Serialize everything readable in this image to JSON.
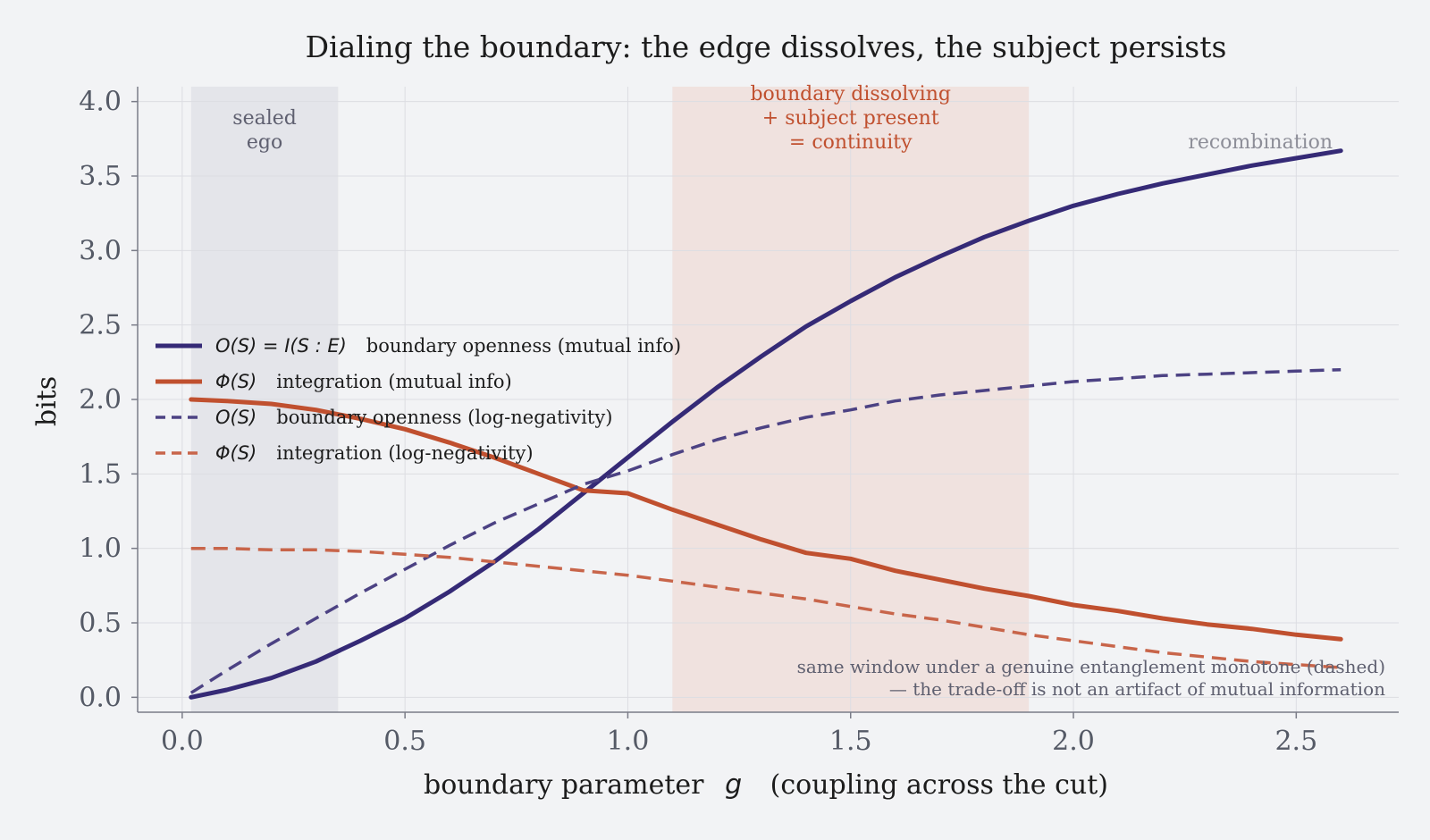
{
  "chart_data": {
    "type": "line",
    "title": "Dialing the boundary: the edge dissolves, the subject persists",
    "xlabel_text": "boundary parameter",
    "xlabel_var": "g",
    "xlabel_suffix": "(coupling across the cut)",
    "ylabel": "bits",
    "xlim": [
      -0.1,
      2.73
    ],
    "ylim": [
      -0.1,
      4.1
    ],
    "xticks": [
      0.0,
      0.5,
      1.0,
      1.5,
      2.0,
      2.5
    ],
    "xtick_labels": [
      "0.0",
      "0.5",
      "1.0",
      "1.5",
      "2.0",
      "2.5"
    ],
    "yticks": [
      0.0,
      0.5,
      1.0,
      1.5,
      2.0,
      2.5,
      3.0,
      3.5,
      4.0
    ],
    "ytick_labels": [
      "0.0",
      "0.5",
      "1.0",
      "1.5",
      "2.0",
      "2.5",
      "3.0",
      "3.5",
      "4.0"
    ],
    "grid": true,
    "regions": [
      {
        "x0": 0.02,
        "x1": 0.35,
        "color": "#e4e5ea",
        "label_lines": [
          "sealed",
          "ego"
        ],
        "label_color": "#5f6070"
      },
      {
        "x0": 1.1,
        "x1": 1.9,
        "color": "#f0e2df",
        "label_lines": [
          "boundary dissolving",
          "+ subject present",
          "= continuity"
        ],
        "label_color": "#c0502f"
      }
    ],
    "region_annotation": {
      "text": "recombination",
      "color": "#8d8e98"
    },
    "note_lines": [
      "same window under a genuine entanglement monotone (dashed)",
      "— the trade-off is not an artifact of mutual information"
    ],
    "x": [
      0.02,
      0.1,
      0.2,
      0.3,
      0.4,
      0.5,
      0.6,
      0.7,
      0.8,
      0.9,
      1.0,
      1.1,
      1.2,
      1.3,
      1.4,
      1.5,
      1.6,
      1.7,
      1.8,
      1.9,
      2.0,
      2.1,
      2.2,
      2.3,
      2.4,
      2.5,
      2.6
    ],
    "series": [
      {
        "math": "O(S) = I(S : E)",
        "desc": "boundary openness (mutual info)",
        "color": "#352a76",
        "dash": "solid",
        "width": 5,
        "values": [
          0.0,
          0.05,
          0.13,
          0.24,
          0.38,
          0.53,
          0.71,
          0.91,
          1.13,
          1.37,
          1.61,
          1.85,
          2.08,
          2.29,
          2.49,
          2.66,
          2.82,
          2.96,
          3.09,
          3.2,
          3.3,
          3.38,
          3.45,
          3.51,
          3.57,
          3.62,
          3.67
        ]
      },
      {
        "math": "Φ(S)",
        "desc": "integration (mutual info)",
        "color": "#c0502f",
        "dash": "solid",
        "width": 5,
        "values": [
          2.0,
          1.99,
          1.97,
          1.93,
          1.87,
          1.8,
          1.71,
          1.61,
          1.5,
          1.39,
          1.37,
          1.26,
          1.16,
          1.06,
          0.97,
          0.93,
          0.85,
          0.79,
          0.73,
          0.68,
          0.62,
          0.58,
          0.53,
          0.49,
          0.46,
          0.42,
          0.39
        ]
      },
      {
        "math": "O(S)",
        "desc": "boundary openness (log-negativity)",
        "color": "#4c4283",
        "dash": "dashed",
        "width": 3.5,
        "values": [
          0.03,
          0.18,
          0.36,
          0.53,
          0.7,
          0.86,
          1.02,
          1.17,
          1.3,
          1.43,
          1.52,
          1.63,
          1.73,
          1.81,
          1.88,
          1.93,
          1.99,
          2.03,
          2.06,
          2.09,
          2.12,
          2.14,
          2.16,
          2.17,
          2.18,
          2.19,
          2.2
        ]
      },
      {
        "math": "Φ(S)",
        "desc": "integration (log-negativity)",
        "color": "#c8654a",
        "dash": "dashed",
        "width": 3.5,
        "values": [
          1.0,
          1.0,
          0.99,
          0.99,
          0.98,
          0.96,
          0.94,
          0.91,
          0.88,
          0.85,
          0.82,
          0.78,
          0.74,
          0.7,
          0.66,
          0.61,
          0.56,
          0.52,
          0.47,
          0.42,
          0.38,
          0.34,
          0.3,
          0.27,
          0.24,
          0.22,
          0.2
        ]
      }
    ]
  }
}
